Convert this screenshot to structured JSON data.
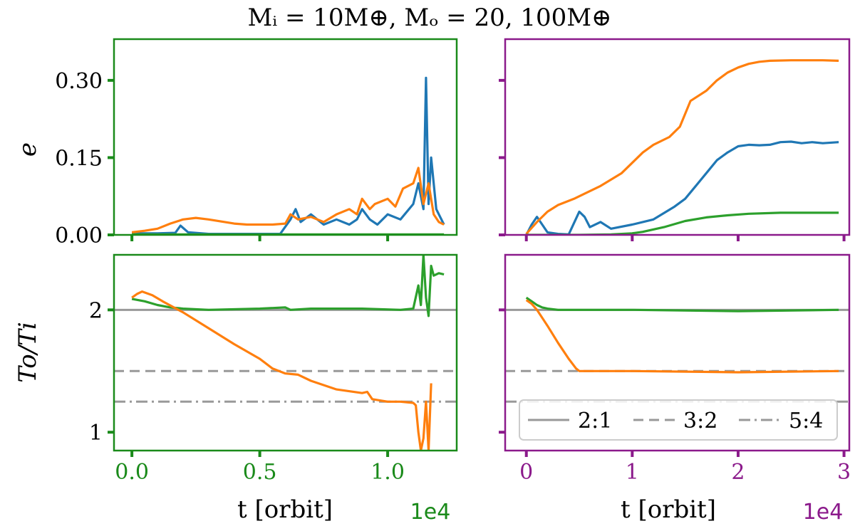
{
  "figure_title": "Mᵢ = 10M⊕, Mₒ = 20, 100M⊕",
  "colors": {
    "left_frame": "#1a8a1a",
    "right_frame": "#8b1a8b",
    "blue": "#1f77b4",
    "orange": "#ff7f0e",
    "green": "#2ca02c",
    "ref": "#999999"
  },
  "chart_data": [
    {
      "id": "top-left",
      "type": "line",
      "ylabel": "e",
      "ylim": [
        0.0,
        0.38
      ],
      "yticks": [
        0.0,
        0.15,
        0.3
      ],
      "ytick_labels": [
        "0.00",
        "0.15",
        "0.30"
      ],
      "xlim": [
        -0.07,
        1.27
      ],
      "xticks": [
        0.0,
        0.5,
        1.0
      ],
      "series": [
        {
          "name": "inner",
          "color": "blue",
          "x": [
            0.0,
            0.1,
            0.17,
            0.19,
            0.22,
            0.3,
            0.5,
            0.58,
            0.62,
            0.64,
            0.66,
            0.7,
            0.75,
            0.8,
            0.85,
            0.88,
            0.9,
            0.93,
            0.96,
            1.0,
            1.05,
            1.1,
            1.12,
            1.14,
            1.15,
            1.16,
            1.17,
            1.19,
            1.22
          ],
          "y": [
            0.003,
            0.003,
            0.004,
            0.018,
            0.005,
            0.002,
            0.002,
            0.002,
            0.03,
            0.05,
            0.025,
            0.04,
            0.02,
            0.03,
            0.02,
            0.03,
            0.05,
            0.03,
            0.02,
            0.04,
            0.03,
            0.06,
            0.1,
            0.05,
            0.305,
            0.06,
            0.15,
            0.05,
            0.02
          ]
        },
        {
          "name": "outer",
          "color": "orange",
          "x": [
            0.0,
            0.05,
            0.1,
            0.15,
            0.2,
            0.25,
            0.3,
            0.35,
            0.4,
            0.45,
            0.5,
            0.55,
            0.6,
            0.62,
            0.65,
            0.7,
            0.75,
            0.8,
            0.85,
            0.88,
            0.9,
            0.93,
            0.95,
            1.0,
            1.03,
            1.06,
            1.1,
            1.12,
            1.14,
            1.16,
            1.18,
            1.2,
            1.22
          ],
          "y": [
            0.005,
            0.008,
            0.012,
            0.022,
            0.03,
            0.033,
            0.03,
            0.026,
            0.022,
            0.02,
            0.02,
            0.02,
            0.022,
            0.04,
            0.03,
            0.035,
            0.025,
            0.04,
            0.05,
            0.04,
            0.07,
            0.05,
            0.06,
            0.07,
            0.055,
            0.09,
            0.1,
            0.13,
            0.06,
            0.1,
            0.04,
            0.025,
            0.02
          ]
        },
        {
          "name": "outer-green",
          "color": "green",
          "x": [
            0.0,
            1.22
          ],
          "y": [
            0.001,
            0.001
          ]
        }
      ]
    },
    {
      "id": "top-right",
      "type": "line",
      "ylim": [
        0.0,
        0.38
      ],
      "yticks": [
        0.0,
        0.15,
        0.3
      ],
      "xlim": [
        -0.2,
        3.05
      ],
      "xticks": [
        0,
        1,
        2,
        3
      ],
      "series": [
        {
          "name": "blue",
          "color": "blue",
          "x": [
            0.0,
            0.05,
            0.1,
            0.15,
            0.2,
            0.3,
            0.4,
            0.5,
            0.55,
            0.6,
            0.7,
            0.8,
            1.0,
            1.2,
            1.4,
            1.5,
            1.6,
            1.7,
            1.8,
            1.9,
            2.0,
            2.1,
            2.2,
            2.3,
            2.4,
            2.5,
            2.6,
            2.7,
            2.8,
            2.95
          ],
          "y": [
            0.0,
            0.02,
            0.035,
            0.02,
            0.005,
            0.002,
            0.001,
            0.045,
            0.035,
            0.015,
            0.025,
            0.012,
            0.02,
            0.03,
            0.055,
            0.07,
            0.095,
            0.12,
            0.145,
            0.16,
            0.172,
            0.175,
            0.174,
            0.175,
            0.18,
            0.181,
            0.178,
            0.18,
            0.178,
            0.18
          ]
        },
        {
          "name": "orange",
          "color": "orange",
          "x": [
            0.0,
            0.1,
            0.2,
            0.3,
            0.45,
            0.55,
            0.7,
            0.9,
            1.1,
            1.2,
            1.35,
            1.45,
            1.55,
            1.7,
            1.8,
            1.9,
            2.0,
            2.1,
            2.2,
            2.3,
            2.5,
            2.8,
            2.95
          ],
          "y": [
            0.002,
            0.025,
            0.045,
            0.058,
            0.07,
            0.08,
            0.095,
            0.12,
            0.16,
            0.175,
            0.19,
            0.21,
            0.26,
            0.28,
            0.3,
            0.315,
            0.325,
            0.332,
            0.336,
            0.338,
            0.339,
            0.339,
            0.338
          ]
        },
        {
          "name": "green",
          "color": "green",
          "x": [
            0.0,
            0.5,
            0.8,
            1.0,
            1.1,
            1.3,
            1.5,
            1.7,
            1.9,
            2.1,
            2.4,
            2.7,
            2.95
          ],
          "y": [
            0.0,
            0.0,
            0.001,
            0.003,
            0.006,
            0.015,
            0.027,
            0.034,
            0.038,
            0.041,
            0.043,
            0.043,
            0.043
          ]
        }
      ]
    },
    {
      "id": "bottom-left",
      "type": "line",
      "ylabel": "To/Ti",
      "ylim": [
        0.85,
        2.45
      ],
      "yticks": [
        1,
        2
      ],
      "ytick_labels": [
        "1",
        "2"
      ],
      "xlim": [
        -0.07,
        1.27
      ],
      "xticks": [
        0.0,
        0.5,
        1.0
      ],
      "xtick_labels": [
        "0.0",
        "0.5",
        "1.0"
      ],
      "xlabel": "t [orbit]",
      "x_multiplier": "1e4",
      "reference_lines": [
        {
          "label": "2:1",
          "y": 2.0,
          "style": "solid"
        },
        {
          "label": "3:2",
          "y": 1.5,
          "style": "dashed"
        },
        {
          "label": "5:4",
          "y": 1.25,
          "style": "dashdot"
        }
      ],
      "series": [
        {
          "name": "green",
          "color": "green",
          "x": [
            0.0,
            0.05,
            0.1,
            0.15,
            0.2,
            0.3,
            0.5,
            0.6,
            0.62,
            0.7,
            0.9,
            1.05,
            1.1,
            1.12,
            1.13,
            1.14,
            1.15,
            1.16,
            1.17,
            1.18,
            1.2,
            1.22
          ],
          "y": [
            2.09,
            2.07,
            2.04,
            2.02,
            2.01,
            2.0,
            2.01,
            2.02,
            2.0,
            2.01,
            2.01,
            2.0,
            2.01,
            2.2,
            2.04,
            2.45,
            2.1,
            1.95,
            2.36,
            2.28,
            2.3,
            2.29
          ]
        },
        {
          "name": "orange",
          "color": "orange",
          "x": [
            0.0,
            0.02,
            0.04,
            0.08,
            0.12,
            0.2,
            0.3,
            0.4,
            0.5,
            0.55,
            0.6,
            0.65,
            0.7,
            0.8,
            0.9,
            0.92,
            0.94,
            1.0,
            1.05,
            1.1,
            1.11,
            1.12,
            1.13,
            1.14,
            1.15,
            1.16,
            1.17
          ],
          "y": [
            2.1,
            2.13,
            2.15,
            2.12,
            2.07,
            1.98,
            1.85,
            1.72,
            1.6,
            1.52,
            1.48,
            1.47,
            1.42,
            1.35,
            1.32,
            1.33,
            1.27,
            1.25,
            1.25,
            1.24,
            1.22,
            1.0,
            0.85,
            0.95,
            1.25,
            0.85,
            1.4
          ]
        }
      ]
    },
    {
      "id": "bottom-right",
      "type": "line",
      "ylim": [
        0.85,
        2.45
      ],
      "yticks": [
        1,
        2
      ],
      "xlim": [
        -0.2,
        3.05
      ],
      "xticks": [
        0,
        1,
        2,
        3
      ],
      "xtick_labels": [
        "0",
        "1",
        "2",
        "3"
      ],
      "xlabel": "t [orbit]",
      "x_multiplier": "1e4",
      "legend": {
        "position": "lower-right",
        "entries": [
          "2:1",
          "3:2",
          "5:4"
        ]
      },
      "reference_lines": [
        {
          "label": "2:1",
          "y": 2.0,
          "style": "solid"
        },
        {
          "label": "3:2",
          "y": 1.5,
          "style": "dashed"
        },
        {
          "label": "5:4",
          "y": 1.25,
          "style": "dashdot"
        }
      ],
      "series": [
        {
          "name": "green",
          "color": "green",
          "x": [
            0.0,
            0.05,
            0.1,
            0.15,
            0.2,
            0.3,
            0.6,
            1.0,
            2.0,
            2.95
          ],
          "y": [
            2.1,
            2.07,
            2.04,
            2.02,
            2.01,
            2.0,
            2.0,
            2.0,
            1.99,
            2.0
          ]
        },
        {
          "name": "orange",
          "color": "orange",
          "x": [
            0.0,
            0.05,
            0.1,
            0.2,
            0.3,
            0.4,
            0.47,
            0.5,
            0.6,
            1.0,
            2.0,
            2.95
          ],
          "y": [
            2.08,
            2.05,
            2.0,
            1.87,
            1.73,
            1.6,
            1.52,
            1.5,
            1.5,
            1.5,
            1.49,
            1.5
          ]
        }
      ]
    }
  ]
}
